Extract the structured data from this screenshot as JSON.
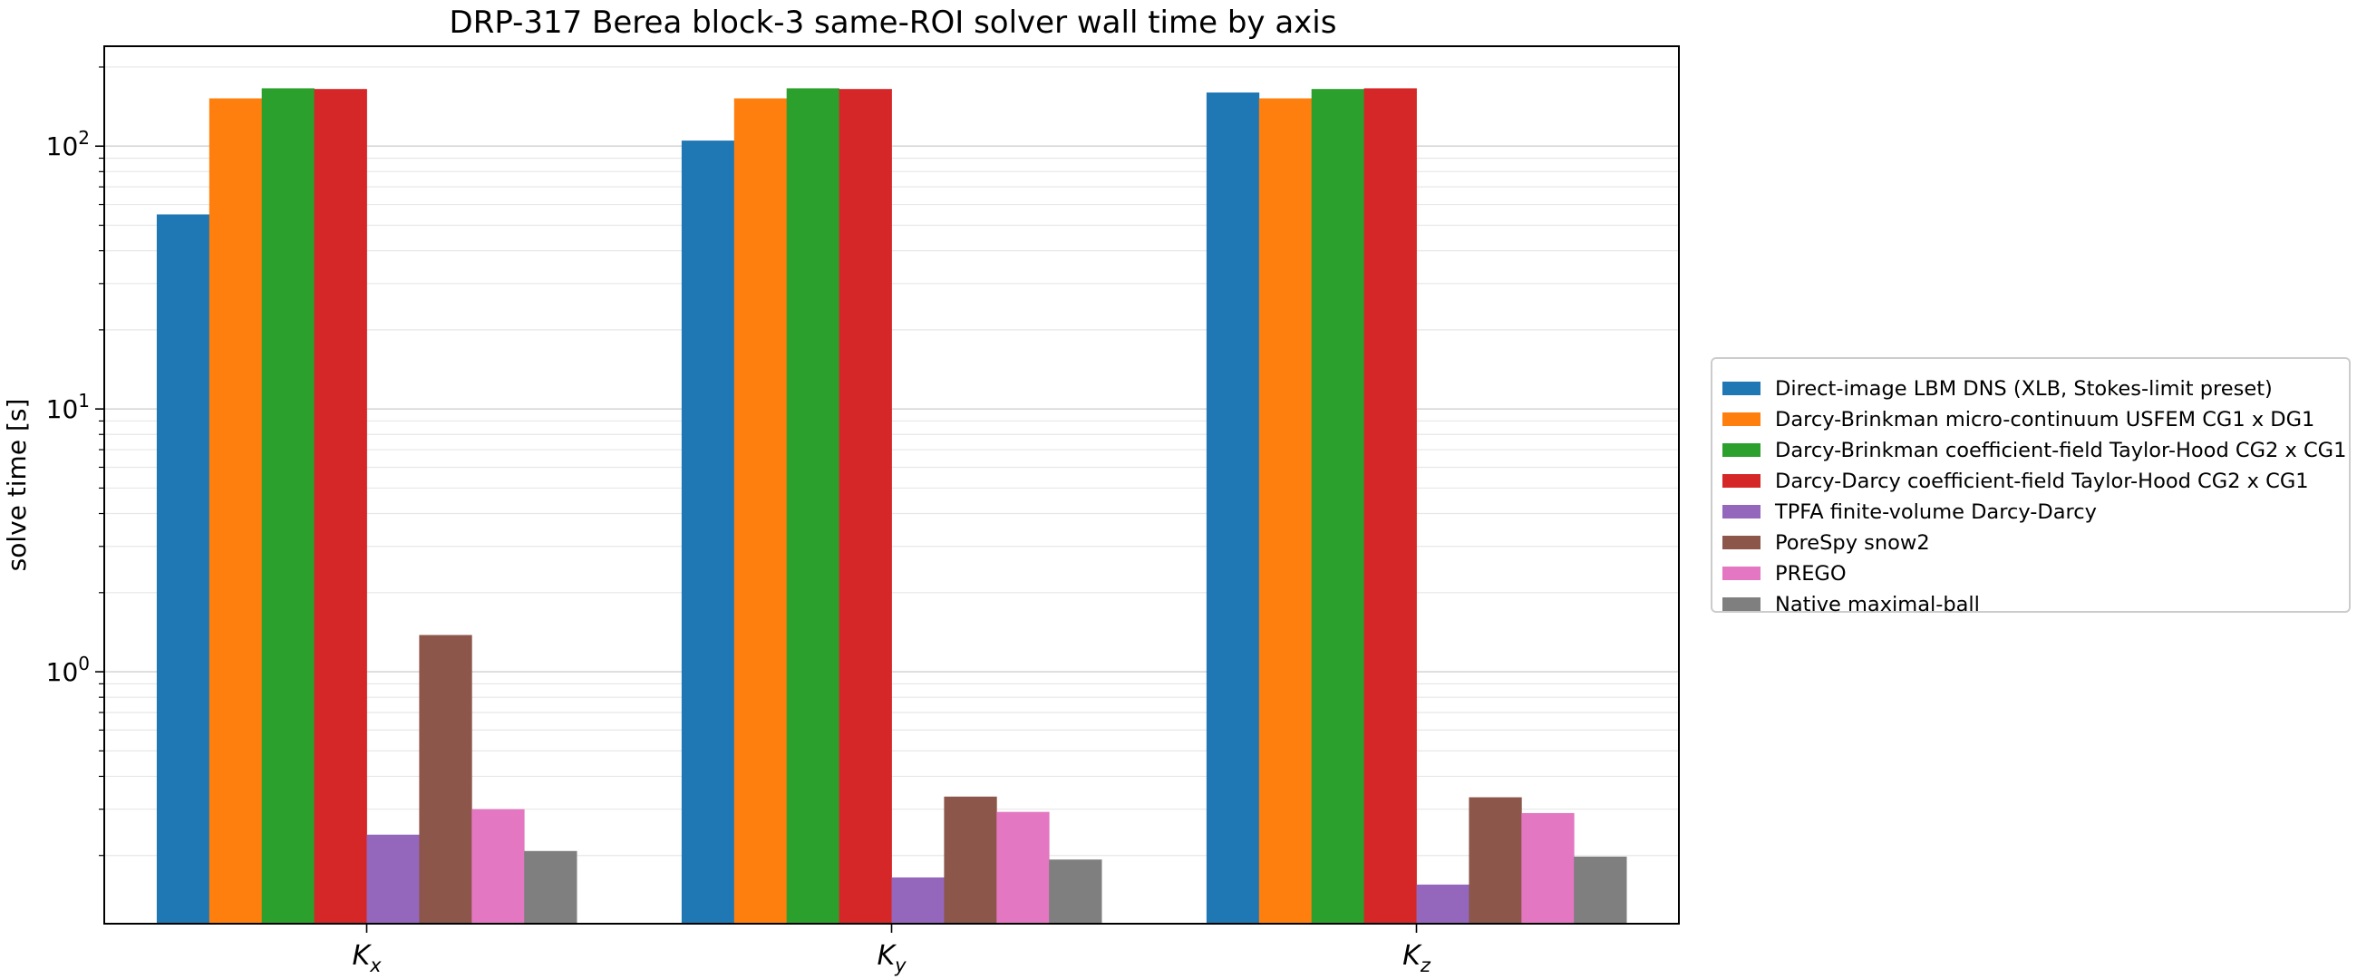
{
  "chart_data": {
    "type": "bar",
    "title": "DRP-317 Berea block-3 same-ROI solver wall time by axis",
    "ylabel": "solve time [s]",
    "xlabel": "",
    "yscale": "log",
    "ylim": [
      0.11,
      240
    ],
    "grid": "y-major-and-minor",
    "legend_position": "right-outside",
    "categories": [
      {
        "base": "K",
        "sub": "x"
      },
      {
        "base": "K",
        "sub": "y"
      },
      {
        "base": "K",
        "sub": "z"
      }
    ],
    "y_ticks": [
      {
        "base": "10",
        "exp": "0",
        "value": 1
      },
      {
        "base": "10",
        "exp": "1",
        "value": 10
      },
      {
        "base": "10",
        "exp": "2",
        "value": 100
      }
    ],
    "series": [
      {
        "name": "Direct-image LBM DNS (XLB, Stokes-limit preset)",
        "color": "#1f77b4",
        "values": [
          55,
          105,
          160
        ]
      },
      {
        "name": "Darcy-Brinkman micro-continuum USFEM CG1 x DG1",
        "color": "#ff7f0e",
        "values": [
          152,
          152,
          152
        ]
      },
      {
        "name": "Darcy-Brinkman coefficient-field Taylor-Hood CG2 x CG1",
        "color": "#2ca02c",
        "values": [
          166,
          166,
          165
        ]
      },
      {
        "name": "Darcy-Darcy coefficient-field Taylor-Hood CG2 x CG1",
        "color": "#d62728",
        "values": [
          165,
          165,
          166
        ]
      },
      {
        "name": "TPFA finite-volume Darcy-Darcy",
        "color": "#9467bd",
        "values": [
          0.24,
          0.165,
          0.155
        ]
      },
      {
        "name": "PoreSpy snow2",
        "color": "#8c564b",
        "values": [
          1.38,
          0.335,
          0.333
        ]
      },
      {
        "name": "PREGO",
        "color": "#e377c2",
        "values": [
          0.3,
          0.293,
          0.29
        ]
      },
      {
        "name": "Native maximal-ball",
        "color": "#7f7f7f",
        "values": [
          0.208,
          0.193,
          0.198
        ]
      }
    ]
  }
}
